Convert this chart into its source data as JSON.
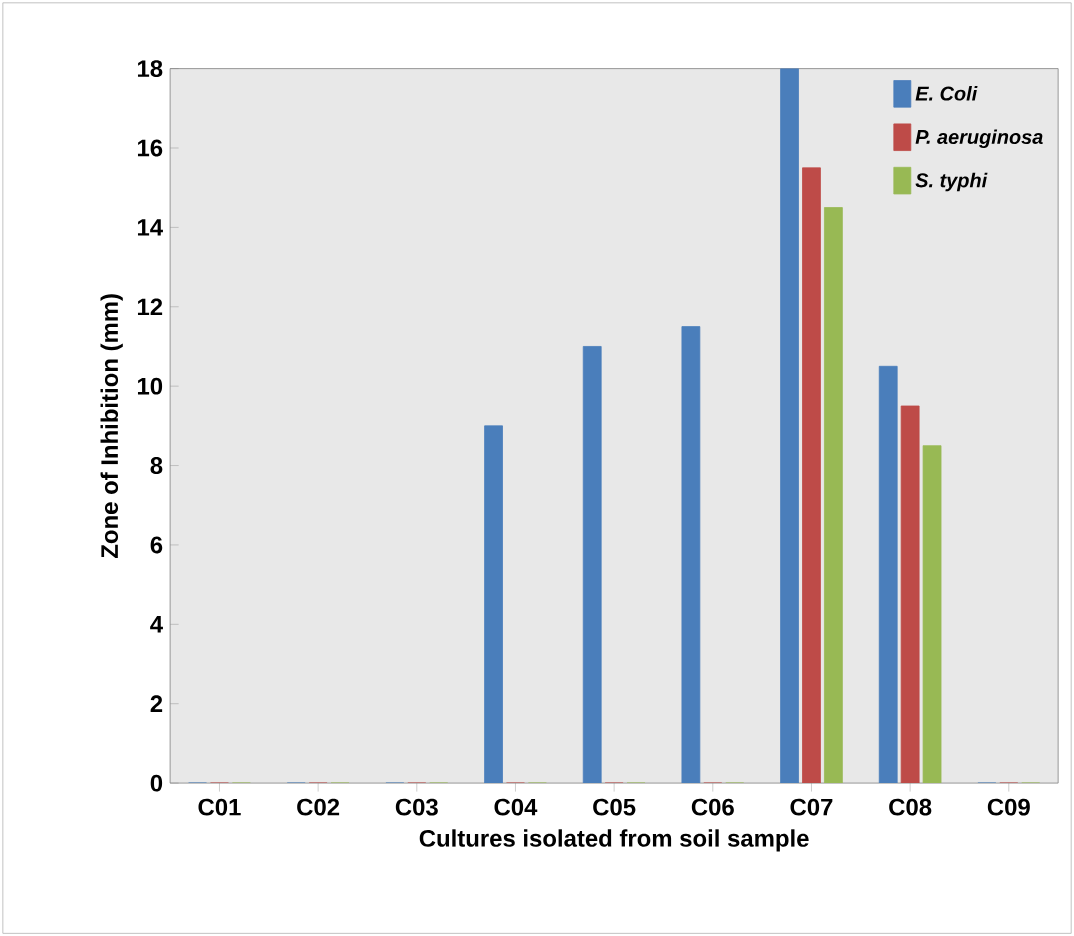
{
  "chart_data": {
    "type": "bar",
    "xlabel": "Cultures isolated from soil sample",
    "ylabel": "Zone of Inhibition (mm)",
    "categories": [
      "C01",
      "C02",
      "C03",
      "C04",
      "C05",
      "C06",
      "C07",
      "C08",
      "C09"
    ],
    "series": [
      {
        "name": "E. Coli",
        "color": "#4a7ebb",
        "values": [
          0,
          0,
          0,
          9,
          11,
          11.5,
          18,
          10.5,
          0
        ]
      },
      {
        "name": "P. aeruginosa",
        "color": "#be4b48",
        "values": [
          0,
          0,
          0,
          0,
          0,
          0,
          15.5,
          9.5,
          0
        ]
      },
      {
        "name": "S. typhi",
        "color": "#98b954",
        "values": [
          0,
          0,
          0,
          0,
          0,
          0,
          14.5,
          8.5,
          0
        ]
      }
    ],
    "ylim": [
      0,
      18
    ],
    "yticks": [
      0,
      2,
      4,
      6,
      8,
      10,
      12,
      14,
      16,
      18
    ],
    "grid": false,
    "legend": "top right"
  }
}
